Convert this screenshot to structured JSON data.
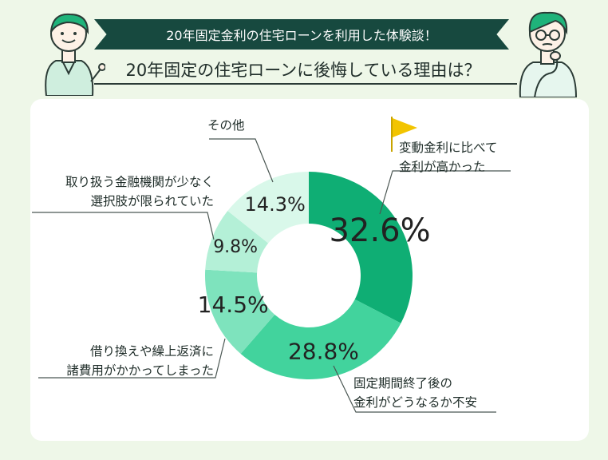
{
  "header": {
    "banner": "20年固定金利の住宅ローンを利用した体験談！",
    "question": "20年固定の住宅ローンに後悔している理由は？"
  },
  "colors": {
    "banner_bg": "#17493f",
    "page_bg": "#eef7e8",
    "flag": "#f2c400"
  },
  "chart_data": {
    "type": "pie",
    "donut": true,
    "unit": "%",
    "slices": [
      {
        "label_lines": [
          "変動金利に比べて",
          "金利が高かった"
        ],
        "value": 32.6,
        "value_label": "32.6%",
        "color": "#0fae74"
      },
      {
        "label_lines": [
          "固定期間終了後の",
          "金利がどうなるか不安"
        ],
        "value": 28.8,
        "value_label": "28.8%",
        "color": "#42d39d"
      },
      {
        "label_lines": [
          "借り換えや繰上返済に",
          "諸費用がかかってしまった"
        ],
        "value": 14.5,
        "value_label": "14.5%",
        "color": "#7ee3bd"
      },
      {
        "label_lines": [
          "取り扱う金融機関が少なく",
          "選択肢が限られていた"
        ],
        "value": 9.8,
        "value_label": "9.8%",
        "color": "#b4f0d7"
      },
      {
        "label_lines": [
          "その他"
        ],
        "value": 14.3,
        "value_label": "14.3%",
        "color": "#d9f8ea"
      }
    ]
  }
}
